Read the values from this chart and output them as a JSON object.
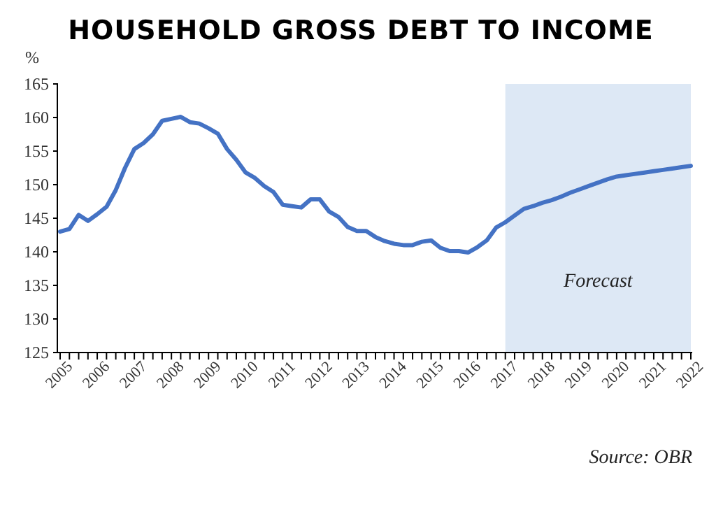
{
  "chart_data": {
    "type": "line",
    "title": "HOUSEHOLD GROSS DEBT TO INCOME",
    "ylabel": "%",
    "categories": [
      "2005",
      null,
      null,
      null,
      "2006",
      null,
      null,
      null,
      "2007",
      null,
      null,
      null,
      "2008",
      null,
      null,
      null,
      "2009",
      null,
      null,
      null,
      "2010",
      null,
      null,
      null,
      "2011",
      null,
      null,
      null,
      "2012",
      null,
      null,
      null,
      "2013",
      null,
      null,
      null,
      "2014",
      null,
      null,
      null,
      "2015",
      null,
      null,
      null,
      "2016",
      null,
      null,
      null,
      "2017",
      null,
      null,
      null,
      "2018",
      null,
      null,
      null,
      "2019",
      null,
      null,
      null,
      "2020",
      null,
      null,
      null,
      "2021",
      null,
      null,
      null,
      "2022"
    ],
    "series": [
      {
        "color": "#4472c4",
        "values": [
          143.0,
          143.4,
          145.5,
          144.6,
          145.6,
          146.7,
          149.2,
          152.5,
          155.3,
          156.2,
          157.5,
          159.5,
          159.8,
          160.1,
          159.3,
          159.1,
          158.4,
          157.6,
          155.3,
          153.7,
          151.8,
          151.0,
          149.8,
          148.9,
          147.0,
          146.8,
          146.6,
          147.8,
          147.8,
          146.0,
          145.2,
          143.7,
          143.1,
          143.1,
          142.2,
          141.6,
          141.2,
          141.0,
          141.0,
          141.5,
          141.7,
          140.6,
          140.1,
          140.1,
          139.9,
          140.7,
          141.7,
          143.6,
          144.4,
          145.4,
          146.4,
          146.8,
          147.3,
          147.7,
          148.2,
          148.8,
          149.3,
          149.8,
          150.3,
          150.8,
          151.2,
          151.4,
          151.6,
          151.8,
          152.0,
          152.2,
          152.4,
          152.6,
          152.8
        ]
      }
    ],
    "ylim": [
      125,
      165
    ],
    "yticks": [
      125,
      130,
      135,
      140,
      145,
      150,
      155,
      160,
      165
    ],
    "grid": false,
    "bands": [
      {
        "axis": "x",
        "from": "2017",
        "to": "2022",
        "label": "Forecast",
        "color": "#dde8f5"
      }
    ],
    "annotations": [
      "Source: OBR"
    ]
  }
}
